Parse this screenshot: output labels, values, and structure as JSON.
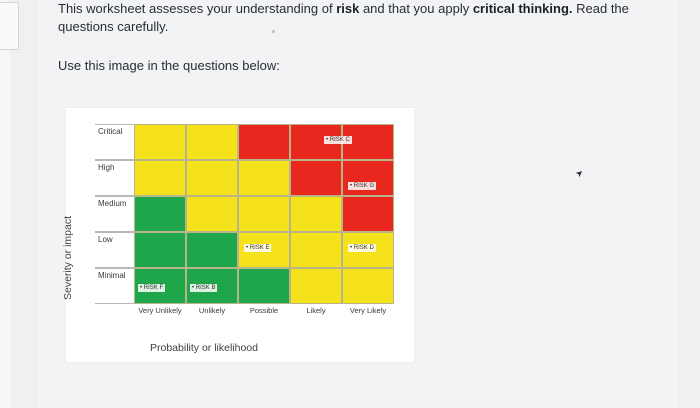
{
  "intro": {
    "part1": "This worksheet assesses your understanding of ",
    "risk": "risk",
    "part2": " and that you apply ",
    "critical": "critical thinking.",
    "part3": " Read the questions carefully."
  },
  "use_line": "Use this image in the questions below:",
  "matrix": {
    "y_axis_label": "Severity or impact",
    "x_axis_label": "Probability or likelihood",
    "rows": [
      "Critical",
      "High",
      "Medium",
      "Low",
      "Minimal"
    ],
    "cols": [
      "Very Unlikely",
      "Unlikely",
      "Possible",
      "Likely",
      "Very Likely"
    ],
    "cell_colors": [
      [
        "#f5e21a",
        "#f5e21a",
        "#e8281f",
        "#e8281f",
        "#e8281f"
      ],
      [
        "#f5e21a",
        "#f5e21a",
        "#f5e21a",
        "#e8281f",
        "#e8281f"
      ],
      [
        "#1fa64a",
        "#f5e21a",
        "#f5e21a",
        "#f5e21a",
        "#e8281f"
      ],
      [
        "#1fa64a",
        "#1fa64a",
        "#f5e21a",
        "#f5e21a",
        "#f5e21a"
      ],
      [
        "#1fa64a",
        "#1fa64a",
        "#1fa64a",
        "#f5e21a",
        "#f5e21a"
      ]
    ],
    "risks": [
      {
        "label": "RISK C",
        "row": 0,
        "col": 4
      },
      {
        "label": "RISK G",
        "row": 1,
        "col": 4
      },
      {
        "label": "RISK E",
        "row": 3,
        "col": 2
      },
      {
        "label": "RISK D",
        "row": 3,
        "col": 4
      },
      {
        "label": "RISK F",
        "row": 4,
        "col": 0
      },
      {
        "label": "RISK B",
        "row": 4,
        "col": 1
      }
    ]
  }
}
